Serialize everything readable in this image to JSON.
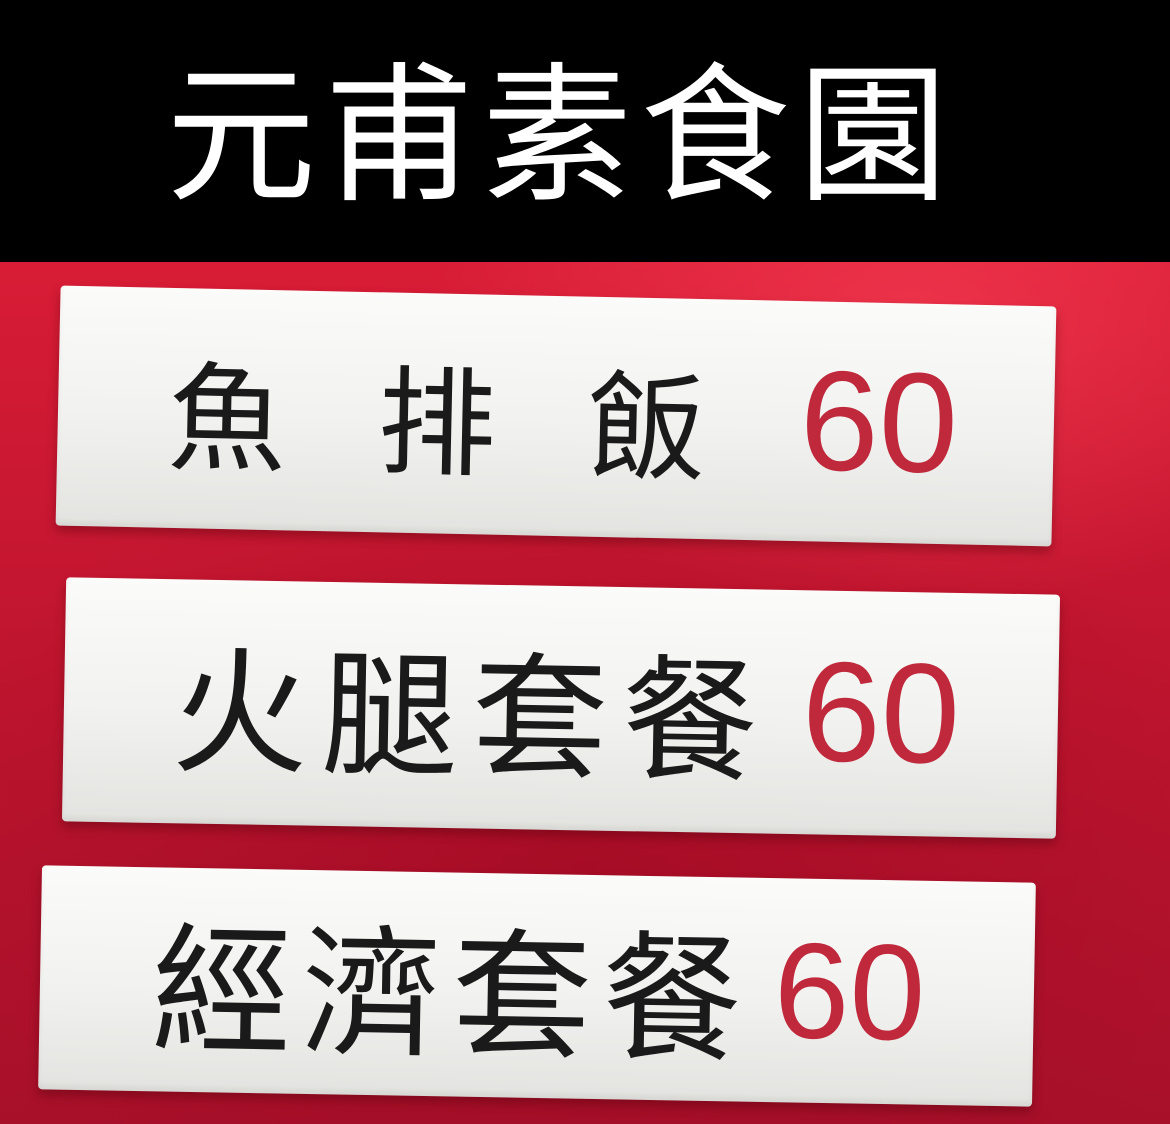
{
  "title": "元甫素食園",
  "menu": [
    {
      "name": "魚排飯",
      "price": "60"
    },
    {
      "name": "火腿套餐",
      "price": "60"
    },
    {
      "name": "經濟套餐",
      "price": "60"
    }
  ],
  "colors": {
    "title_bar": "#000000",
    "title_text": "#ffffff",
    "wall": "#c8162f",
    "sign": "#f4f4f2",
    "item_text": "#1a1a1a",
    "price_text": "#c0283b"
  }
}
